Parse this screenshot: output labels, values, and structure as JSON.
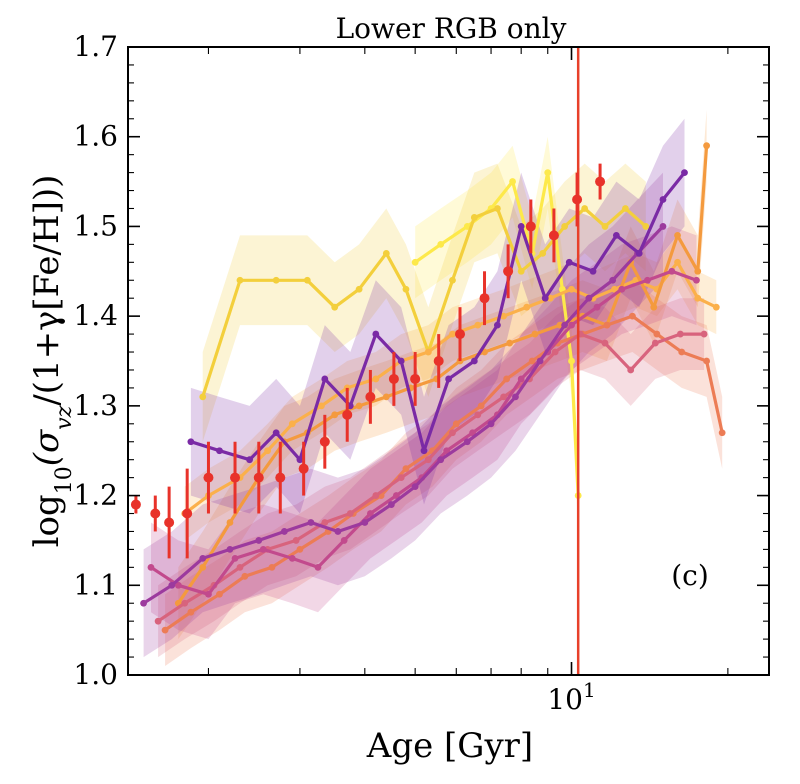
{
  "chart_data": {
    "type": "line",
    "title": "Lower RGB only",
    "xlabel": "Age [Gyr]",
    "ylabel": "log10(σvz/(1+γ[Fe/H]))",
    "x_scale": "log",
    "xlim": [
      1.4,
      24
    ],
    "ylim": [
      1.0,
      1.7
    ],
    "yticks": [
      "1.0",
      "1.1",
      "1.2",
      "1.3",
      "1.4",
      "1.5",
      "1.6",
      "1.7"
    ],
    "xtick_major_label": "10^1",
    "xtick_major_value": 10,
    "panel_label": "(c)",
    "grid": false,
    "vertical_line": {
      "x": 10.3,
      "color": "#e8402a"
    },
    "series": [
      {
        "color": "#fde94a",
        "band": 0.04,
        "x": [
          5.0,
          5.6,
          6.3,
          7.0,
          7.7,
          8.4,
          9.0,
          9.6,
          10.0,
          10.3
        ],
        "y": [
          1.46,
          1.48,
          1.5,
          1.52,
          1.55,
          1.47,
          1.56,
          1.43,
          1.35,
          1.2
        ]
      },
      {
        "color": "#f3cf3c",
        "band": 0.05,
        "x": [
          1.95,
          2.3,
          2.7,
          3.1,
          3.5,
          3.9,
          4.4,
          4.8,
          5.3,
          5.9,
          6.5,
          7.2,
          8.0,
          8.8,
          9.7,
          10.6,
          11.6,
          12.7,
          13.9
        ],
        "y": [
          1.31,
          1.44,
          1.44,
          1.44,
          1.41,
          1.43,
          1.47,
          1.43,
          1.36,
          1.44,
          1.51,
          1.52,
          1.45,
          1.47,
          1.5,
          1.52,
          1.5,
          1.52,
          1.5
        ]
      },
      {
        "color": "#fbb04a",
        "band": 0.03,
        "x": [
          1.8,
          2.0,
          2.3,
          2.6,
          2.9,
          3.3,
          3.7,
          4.2,
          4.7,
          5.3,
          5.9,
          6.6,
          7.4,
          8.2,
          9.1,
          10.0,
          11.0,
          12.1,
          13.3,
          14.6,
          16.0,
          17.5,
          19.0
        ],
        "y": [
          1.18,
          1.2,
          1.22,
          1.25,
          1.28,
          1.3,
          1.32,
          1.33,
          1.35,
          1.36,
          1.38,
          1.39,
          1.4,
          1.41,
          1.42,
          1.43,
          1.42,
          1.43,
          1.44,
          1.43,
          1.46,
          1.42,
          1.41
        ]
      },
      {
        "color": "#f49a3e",
        "band": 0.04,
        "x": [
          1.75,
          1.95,
          2.2,
          2.5,
          2.8,
          3.1,
          3.5,
          3.9,
          4.4,
          4.9,
          5.5,
          6.1,
          6.8,
          7.6,
          8.5,
          9.5,
          10.5,
          11.7,
          13.0,
          14.4,
          16.0,
          17.5,
          18.2
        ],
        "y": [
          1.08,
          1.12,
          1.17,
          1.22,
          1.26,
          1.27,
          1.29,
          1.3,
          1.31,
          1.32,
          1.33,
          1.35,
          1.36,
          1.37,
          1.38,
          1.39,
          1.4,
          1.39,
          1.46,
          1.41,
          1.49,
          1.45,
          1.59
        ]
      },
      {
        "color": "#ec7c55",
        "band": 0.04,
        "x": [
          1.65,
          1.85,
          2.1,
          2.35,
          2.65,
          3.0,
          3.4,
          3.8,
          4.3,
          4.8,
          5.4,
          6.0,
          6.7,
          7.5,
          8.4,
          9.4,
          10.5,
          11.7,
          13.1,
          14.6,
          16.3,
          18.2,
          19.5
        ],
        "y": [
          1.05,
          1.07,
          1.09,
          1.11,
          1.12,
          1.14,
          1.16,
          1.18,
          1.2,
          1.23,
          1.25,
          1.28,
          1.3,
          1.33,
          1.35,
          1.37,
          1.38,
          1.39,
          1.4,
          1.38,
          1.36,
          1.35,
          1.27
        ]
      },
      {
        "color": "#d8637d",
        "band": 0.04,
        "x": [
          1.6,
          1.8,
          2.05,
          2.3,
          2.6,
          2.95,
          3.35,
          3.75,
          4.2,
          4.7,
          5.3,
          5.9,
          6.6,
          7.4,
          8.3,
          9.3,
          10.4,
          11.6,
          13.0,
          14.5,
          16.2,
          18.0
        ],
        "y": [
          1.06,
          1.08,
          1.1,
          1.12,
          1.14,
          1.15,
          1.17,
          1.18,
          1.2,
          1.22,
          1.24,
          1.27,
          1.29,
          1.31,
          1.33,
          1.36,
          1.38,
          1.37,
          1.34,
          1.37,
          1.38,
          1.38
        ]
      },
      {
        "color": "#c24a8d",
        "band": 0.05,
        "x": [
          1.55,
          1.75,
          2.0,
          2.25,
          2.55,
          2.9,
          3.25,
          3.65,
          4.1,
          4.6,
          5.15,
          5.75,
          6.45,
          7.2,
          8.0,
          9.0,
          10.0,
          11.2,
          12.5,
          14.0,
          15.6,
          17.4
        ],
        "y": [
          1.12,
          1.1,
          1.09,
          1.13,
          1.14,
          1.13,
          1.12,
          1.15,
          1.18,
          1.2,
          1.22,
          1.25,
          1.27,
          1.29,
          1.33,
          1.36,
          1.39,
          1.41,
          1.43,
          1.44,
          1.45,
          1.44
        ]
      },
      {
        "color": "#9c3a9e",
        "band": 0.06,
        "x": [
          1.5,
          1.7,
          1.95,
          2.2,
          2.5,
          2.8,
          3.15,
          3.55,
          4.0,
          4.5,
          5.0,
          5.6,
          6.3,
          7.0,
          7.8,
          8.7,
          9.7,
          10.8,
          12.0,
          13.4,
          15.0
        ],
        "y": [
          1.08,
          1.1,
          1.13,
          1.14,
          1.15,
          1.16,
          1.17,
          1.16,
          1.17,
          1.19,
          1.21,
          1.24,
          1.26,
          1.28,
          1.31,
          1.35,
          1.39,
          1.42,
          1.44,
          1.47,
          1.5
        ]
      },
      {
        "color": "#7a2aa5",
        "band": 0.06,
        "x": [
          1.85,
          2.1,
          2.4,
          2.7,
          3.0,
          3.35,
          3.75,
          4.2,
          4.7,
          5.2,
          5.8,
          6.5,
          7.2,
          8.0,
          8.9,
          9.9,
          11.0,
          12.2,
          13.5,
          15.0,
          16.5
        ],
        "y": [
          1.26,
          1.25,
          1.24,
          1.27,
          1.24,
          1.33,
          1.3,
          1.38,
          1.35,
          1.25,
          1.33,
          1.35,
          1.39,
          1.5,
          1.42,
          1.46,
          1.45,
          1.49,
          1.47,
          1.53,
          1.56
        ]
      }
    ],
    "points": {
      "color": "#e8322a",
      "x": [
        1.45,
        1.58,
        1.68,
        1.82,
        2.0,
        2.25,
        2.5,
        2.75,
        3.05,
        3.35,
        3.7,
        4.1,
        4.55,
        5.0,
        5.55,
        6.1,
        6.8,
        7.55,
        8.35,
        9.25,
        10.25,
        11.35
      ],
      "y": [
        1.19,
        1.18,
        1.17,
        1.18,
        1.22,
        1.22,
        1.22,
        1.22,
        1.23,
        1.26,
        1.29,
        1.31,
        1.33,
        1.33,
        1.35,
        1.38,
        1.42,
        1.45,
        1.5,
        1.49,
        1.53,
        1.55
      ],
      "err": [
        0.01,
        0.02,
        0.04,
        0.05,
        0.04,
        0.04,
        0.04,
        0.04,
        0.03,
        0.03,
        0.03,
        0.03,
        0.03,
        0.03,
        0.03,
        0.03,
        0.03,
        0.03,
        0.03,
        0.03,
        0.03,
        0.02
      ]
    }
  }
}
